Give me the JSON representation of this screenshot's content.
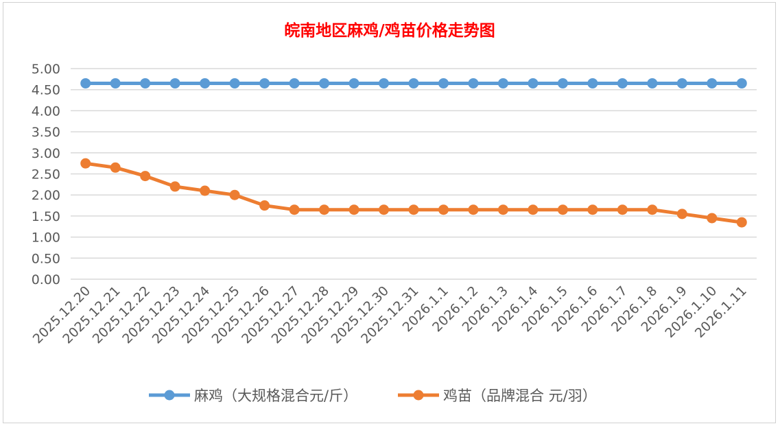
{
  "chart_data": {
    "type": "line",
    "title": "皖南地区麻鸡/鸡苗价格走势图",
    "title_color": "#ff0000",
    "categories": [
      "2025.12.20",
      "2025.12.21",
      "2025.12.22",
      "2025.12.23",
      "2025.12.24",
      "2025.12.25",
      "2025.12.26",
      "2025.12.27",
      "2025.12.28",
      "2025.12.29",
      "2025.12.30",
      "2025.12.31",
      "2026.1.1",
      "2026.1.2",
      "2026.1.3",
      "2026.1.4",
      "2026.1.5",
      "2026.1.6",
      "2026.1.7",
      "2026.1.8",
      "2026.1.9",
      "2026.1.10",
      "2026.1.11"
    ],
    "series": [
      {
        "name": "麻鸡（大规格混合元/斤）",
        "color": "#5b9bd5",
        "values": [
          4.65,
          4.65,
          4.65,
          4.65,
          4.65,
          4.65,
          4.65,
          4.65,
          4.65,
          4.65,
          4.65,
          4.65,
          4.65,
          4.65,
          4.65,
          4.65,
          4.65,
          4.65,
          4.65,
          4.65,
          4.65,
          4.65,
          4.65
        ]
      },
      {
        "name": "鸡苗（品牌混合 元/羽）",
        "color": "#ed7d31",
        "values": [
          2.75,
          2.65,
          2.45,
          2.2,
          2.1,
          2.0,
          1.75,
          1.65,
          1.65,
          1.65,
          1.65,
          1.65,
          1.65,
          1.65,
          1.65,
          1.65,
          1.65,
          1.65,
          1.65,
          1.65,
          1.55,
          1.45,
          1.35
        ]
      }
    ],
    "yticks": [
      "0.00",
      "0.50",
      "1.00",
      "1.50",
      "2.00",
      "2.50",
      "3.00",
      "3.50",
      "4.00",
      "4.50",
      "5.00"
    ],
    "ylim": [
      0,
      5
    ],
    "grid": true,
    "legend": "bottom",
    "xlabel": "",
    "ylabel": ""
  }
}
